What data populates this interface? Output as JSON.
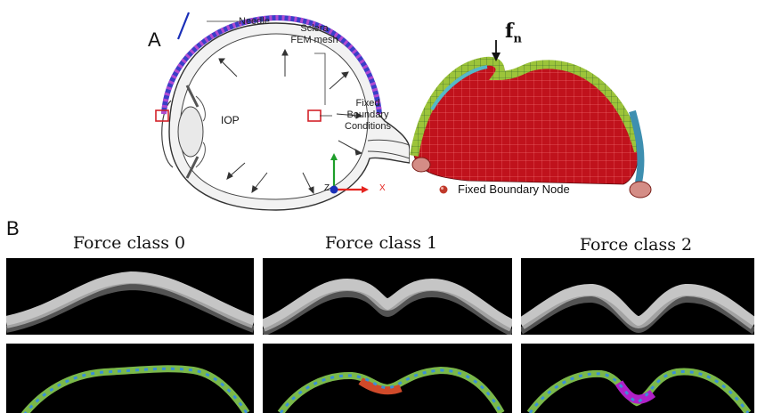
{
  "panel_a": {
    "label": "A",
    "needle_label": "Needle",
    "sclera_label_line1": "Sclera",
    "sclera_label_line2": "FEM mesh",
    "iop_label": "IOP",
    "fixed_label_line1": "Fixed",
    "fixed_label_line2": "Boundary",
    "fixed_label_line3": "Conditions",
    "axis_z": "Z",
    "axis_x": "X",
    "force_symbol": "f",
    "force_subscript": "n",
    "legend_fixed_node": "Fixed Boundary Node",
    "colors": {
      "mesh_red": "#c0121c",
      "needle": "#1a2fb8",
      "mesh_dots": "#5a2fa0",
      "box": "#d3222a"
    }
  },
  "panel_b": {
    "label": "B",
    "classes": [
      {
        "title": "Force class 0"
      },
      {
        "title": "Force class 1"
      },
      {
        "title": "Force class 2"
      }
    ]
  }
}
